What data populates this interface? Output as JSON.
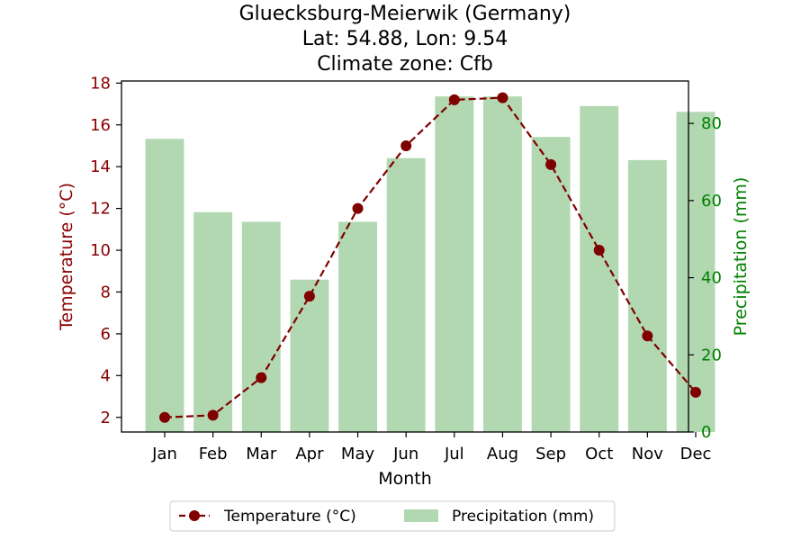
{
  "chart_data": {
    "type": "bar",
    "title_lines": [
      "Gluecksburg-Meierwik (Germany)",
      "Lat: 54.88, Lon: 9.54",
      "Climate zone: Cfb"
    ],
    "xlabel": "Month",
    "categories": [
      "Jan",
      "Feb",
      "Mar",
      "Apr",
      "May",
      "Jun",
      "Jul",
      "Aug",
      "Sep",
      "Oct",
      "Nov",
      "Dec"
    ],
    "series": [
      {
        "name": "Temperature (°C)",
        "kind": "line",
        "axis": "left",
        "style": "dashed with circle markers",
        "color": "#800000",
        "values": [
          2.0,
          2.1,
          3.9,
          7.8,
          12.0,
          15.0,
          17.2,
          17.3,
          14.1,
          10.0,
          5.9,
          3.2
        ]
      },
      {
        "name": "Precipitation (mm)",
        "kind": "bar",
        "axis": "right",
        "color": "#b2d8b2",
        "values": [
          76,
          57,
          54.5,
          39.5,
          54.5,
          71,
          87,
          87,
          76.5,
          84.5,
          70.5,
          83
        ]
      }
    ],
    "left_axis": {
      "label": "Temperature (°C)",
      "color": "#8b0000",
      "range": [
        1.3,
        18.1
      ],
      "ticks": [
        2,
        4,
        6,
        8,
        10,
        12,
        14,
        16,
        18
      ]
    },
    "right_axis": {
      "label": "Precipitation (mm)",
      "color": "#008000",
      "range": [
        0,
        91
      ],
      "ticks": [
        0,
        20,
        40,
        60,
        80
      ]
    },
    "grid": false,
    "legend_placement": "below the plot, centered"
  }
}
